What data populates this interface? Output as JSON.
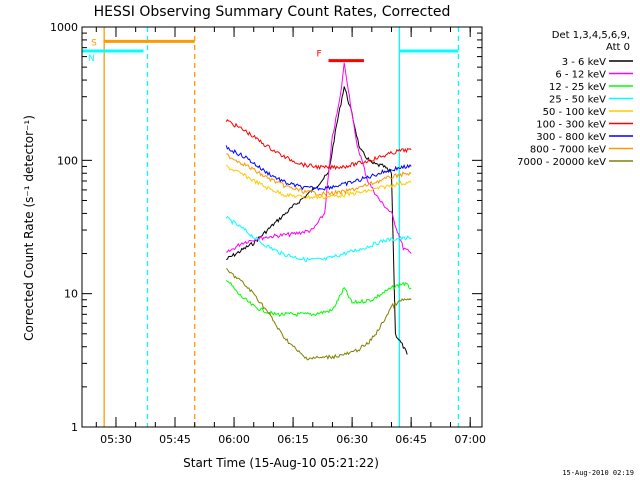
{
  "chart_data": {
    "type": "line",
    "title": "HESSI Observing Summary Count Rates, Corrected",
    "xlabel": "Start Time (15-Aug-10 05:21:22)",
    "ylabel": "Corrected Count Rate (s⁻¹ detector⁻¹)",
    "y_scale": "log",
    "ylim": [
      1,
      1000
    ],
    "y_ticks": [
      "1",
      "10",
      "100",
      "1000"
    ],
    "x_ticks": [
      "05:30",
      "05:45",
      "06:00",
      "06:15",
      "06:30",
      "06:45",
      "07:00"
    ],
    "legend_header": [
      "Det 1,3,4,5,6,9,",
      "Att 0"
    ],
    "legend_position": "right",
    "grid": false,
    "series": [
      {
        "name": "3 - 6 keV",
        "color": "#000000",
        "points": [
          [
            "05:58",
            18
          ],
          [
            "06:05",
            24
          ],
          [
            "06:10",
            33
          ],
          [
            "06:15",
            45
          ],
          [
            "06:20",
            60
          ],
          [
            "06:24",
            80
          ],
          [
            "06:26",
            180
          ],
          [
            "06:28",
            360
          ],
          [
            "06:30",
            220
          ],
          [
            "06:32",
            120
          ],
          [
            "06:35",
            95
          ],
          [
            "06:38",
            90
          ],
          [
            "06:40",
            80
          ],
          [
            "06:41",
            5
          ],
          [
            "06:43",
            4
          ],
          [
            "06:44",
            3.5
          ]
        ]
      },
      {
        "name": "6 - 12 keV",
        "color": "#ff00ff",
        "points": [
          [
            "05:58",
            20
          ],
          [
            "06:02",
            24
          ],
          [
            "06:06",
            26
          ],
          [
            "06:10",
            27
          ],
          [
            "06:15",
            28
          ],
          [
            "06:20",
            30
          ],
          [
            "06:23",
            40
          ],
          [
            "06:25",
            150
          ],
          [
            "06:27",
            300
          ],
          [
            "06:28",
            530
          ],
          [
            "06:29",
            350
          ],
          [
            "06:31",
            140
          ],
          [
            "06:34",
            70
          ],
          [
            "06:37",
            50
          ],
          [
            "06:40",
            40
          ],
          [
            "06:43",
            22
          ],
          [
            "06:45",
            20
          ]
        ]
      },
      {
        "name": "12 - 25 keV",
        "color": "#00ff00",
        "points": [
          [
            "05:58",
            13
          ],
          [
            "06:01",
            10
          ],
          [
            "06:05",
            8
          ],
          [
            "06:10",
            7
          ],
          [
            "06:15",
            7
          ],
          [
            "06:20",
            7
          ],
          [
            "06:25",
            7.5
          ],
          [
            "06:28",
            11
          ],
          [
            "06:30",
            8.5
          ],
          [
            "06:35",
            9
          ],
          [
            "06:40",
            11
          ],
          [
            "06:43",
            12
          ],
          [
            "06:45",
            11
          ]
        ]
      },
      {
        "name": "25 - 50 keV",
        "color": "#00ffff",
        "points": [
          [
            "05:58",
            37
          ],
          [
            "06:02",
            31
          ],
          [
            "06:07",
            24
          ],
          [
            "06:12",
            20
          ],
          [
            "06:18",
            18
          ],
          [
            "06:23",
            18
          ],
          [
            "06:28",
            20
          ],
          [
            "06:33",
            22
          ],
          [
            "06:38",
            25
          ],
          [
            "06:42",
            26
          ],
          [
            "06:45",
            26
          ]
        ]
      },
      {
        "name": "50 - 100 keV",
        "color": "#ffcc00",
        "points": [
          [
            "05:58",
            90
          ],
          [
            "06:03",
            76
          ],
          [
            "06:08",
            63
          ],
          [
            "06:13",
            55
          ],
          [
            "06:18",
            53
          ],
          [
            "06:23",
            53
          ],
          [
            "06:28",
            55
          ],
          [
            "06:33",
            58
          ],
          [
            "06:38",
            63
          ],
          [
            "06:42",
            67
          ],
          [
            "06:45",
            68
          ]
        ]
      },
      {
        "name": "100 - 300 keV",
        "color": "#ff0000",
        "points": [
          [
            "05:58",
            200
          ],
          [
            "06:03",
            165
          ],
          [
            "06:08",
            130
          ],
          [
            "06:13",
            105
          ],
          [
            "06:18",
            92
          ],
          [
            "06:23",
            88
          ],
          [
            "06:28",
            90
          ],
          [
            "06:33",
            97
          ],
          [
            "06:38",
            108
          ],
          [
            "06:42",
            118
          ],
          [
            "06:45",
            120
          ]
        ]
      },
      {
        "name": "300 - 800 keV",
        "color": "#0000ff",
        "points": [
          [
            "05:58",
            125
          ],
          [
            "06:03",
            105
          ],
          [
            "06:08",
            82
          ],
          [
            "06:13",
            68
          ],
          [
            "06:18",
            62
          ],
          [
            "06:23",
            62
          ],
          [
            "06:28",
            66
          ],
          [
            "06:33",
            73
          ],
          [
            "06:38",
            82
          ],
          [
            "06:42",
            88
          ],
          [
            "06:45",
            90
          ]
        ]
      },
      {
        "name": "800 - 7000 keV",
        "color": "#ff9900",
        "points": [
          [
            "05:58",
            110
          ],
          [
            "06:03",
            92
          ],
          [
            "06:08",
            75
          ],
          [
            "06:13",
            64
          ],
          [
            "06:18",
            58
          ],
          [
            "06:23",
            56
          ],
          [
            "06:28",
            58
          ],
          [
            "06:33",
            64
          ],
          [
            "06:38",
            72
          ],
          [
            "06:42",
            78
          ],
          [
            "06:45",
            80
          ]
        ]
      },
      {
        "name": "7000 - 20000 keV",
        "color": "#808000",
        "points": [
          [
            "05:58",
            15
          ],
          [
            "06:01",
            13
          ],
          [
            "06:05",
            10
          ],
          [
            "06:09",
            7
          ],
          [
            "06:12",
            5
          ],
          [
            "06:15",
            4
          ],
          [
            "06:18",
            3.3
          ],
          [
            "06:22",
            3.3
          ],
          [
            "06:26",
            3.4
          ],
          [
            "06:30",
            3.6
          ],
          [
            "06:34",
            4.2
          ],
          [
            "06:37",
            5.5
          ],
          [
            "06:40",
            8
          ],
          [
            "06:43",
            9
          ],
          [
            "06:45",
            9
          ]
        ]
      }
    ],
    "annotations": [
      {
        "label": "S",
        "color": "#ff9900",
        "flag_start": "05:27",
        "flag_end": "05:50",
        "level": 780
      },
      {
        "label": "N",
        "color": "#00ffff",
        "flag_start": "05:21",
        "flag_end": "05:37",
        "level": 660
      },
      {
        "label": "F",
        "color": "#ff0000",
        "flag_start": "06:24",
        "flag_end": "06:33",
        "level": 560
      },
      {
        "label": "",
        "color": "#00ffff",
        "flag_start": "06:42",
        "flag_end": "06:57",
        "level": 660
      }
    ],
    "vertical_markers": [
      {
        "time": "05:27",
        "color": "#ff9900",
        "style": "solid"
      },
      {
        "time": "05:38",
        "color": "#00ffff",
        "style": "dashed"
      },
      {
        "time": "05:50",
        "color": "#ff9900",
        "style": "dashed"
      },
      {
        "time": "06:42",
        "color": "#00ffff",
        "style": "solid"
      },
      {
        "time": "06:57",
        "color": "#00ffff",
        "style": "dashed"
      }
    ]
  },
  "footer": "15-Aug-2010 02:19"
}
